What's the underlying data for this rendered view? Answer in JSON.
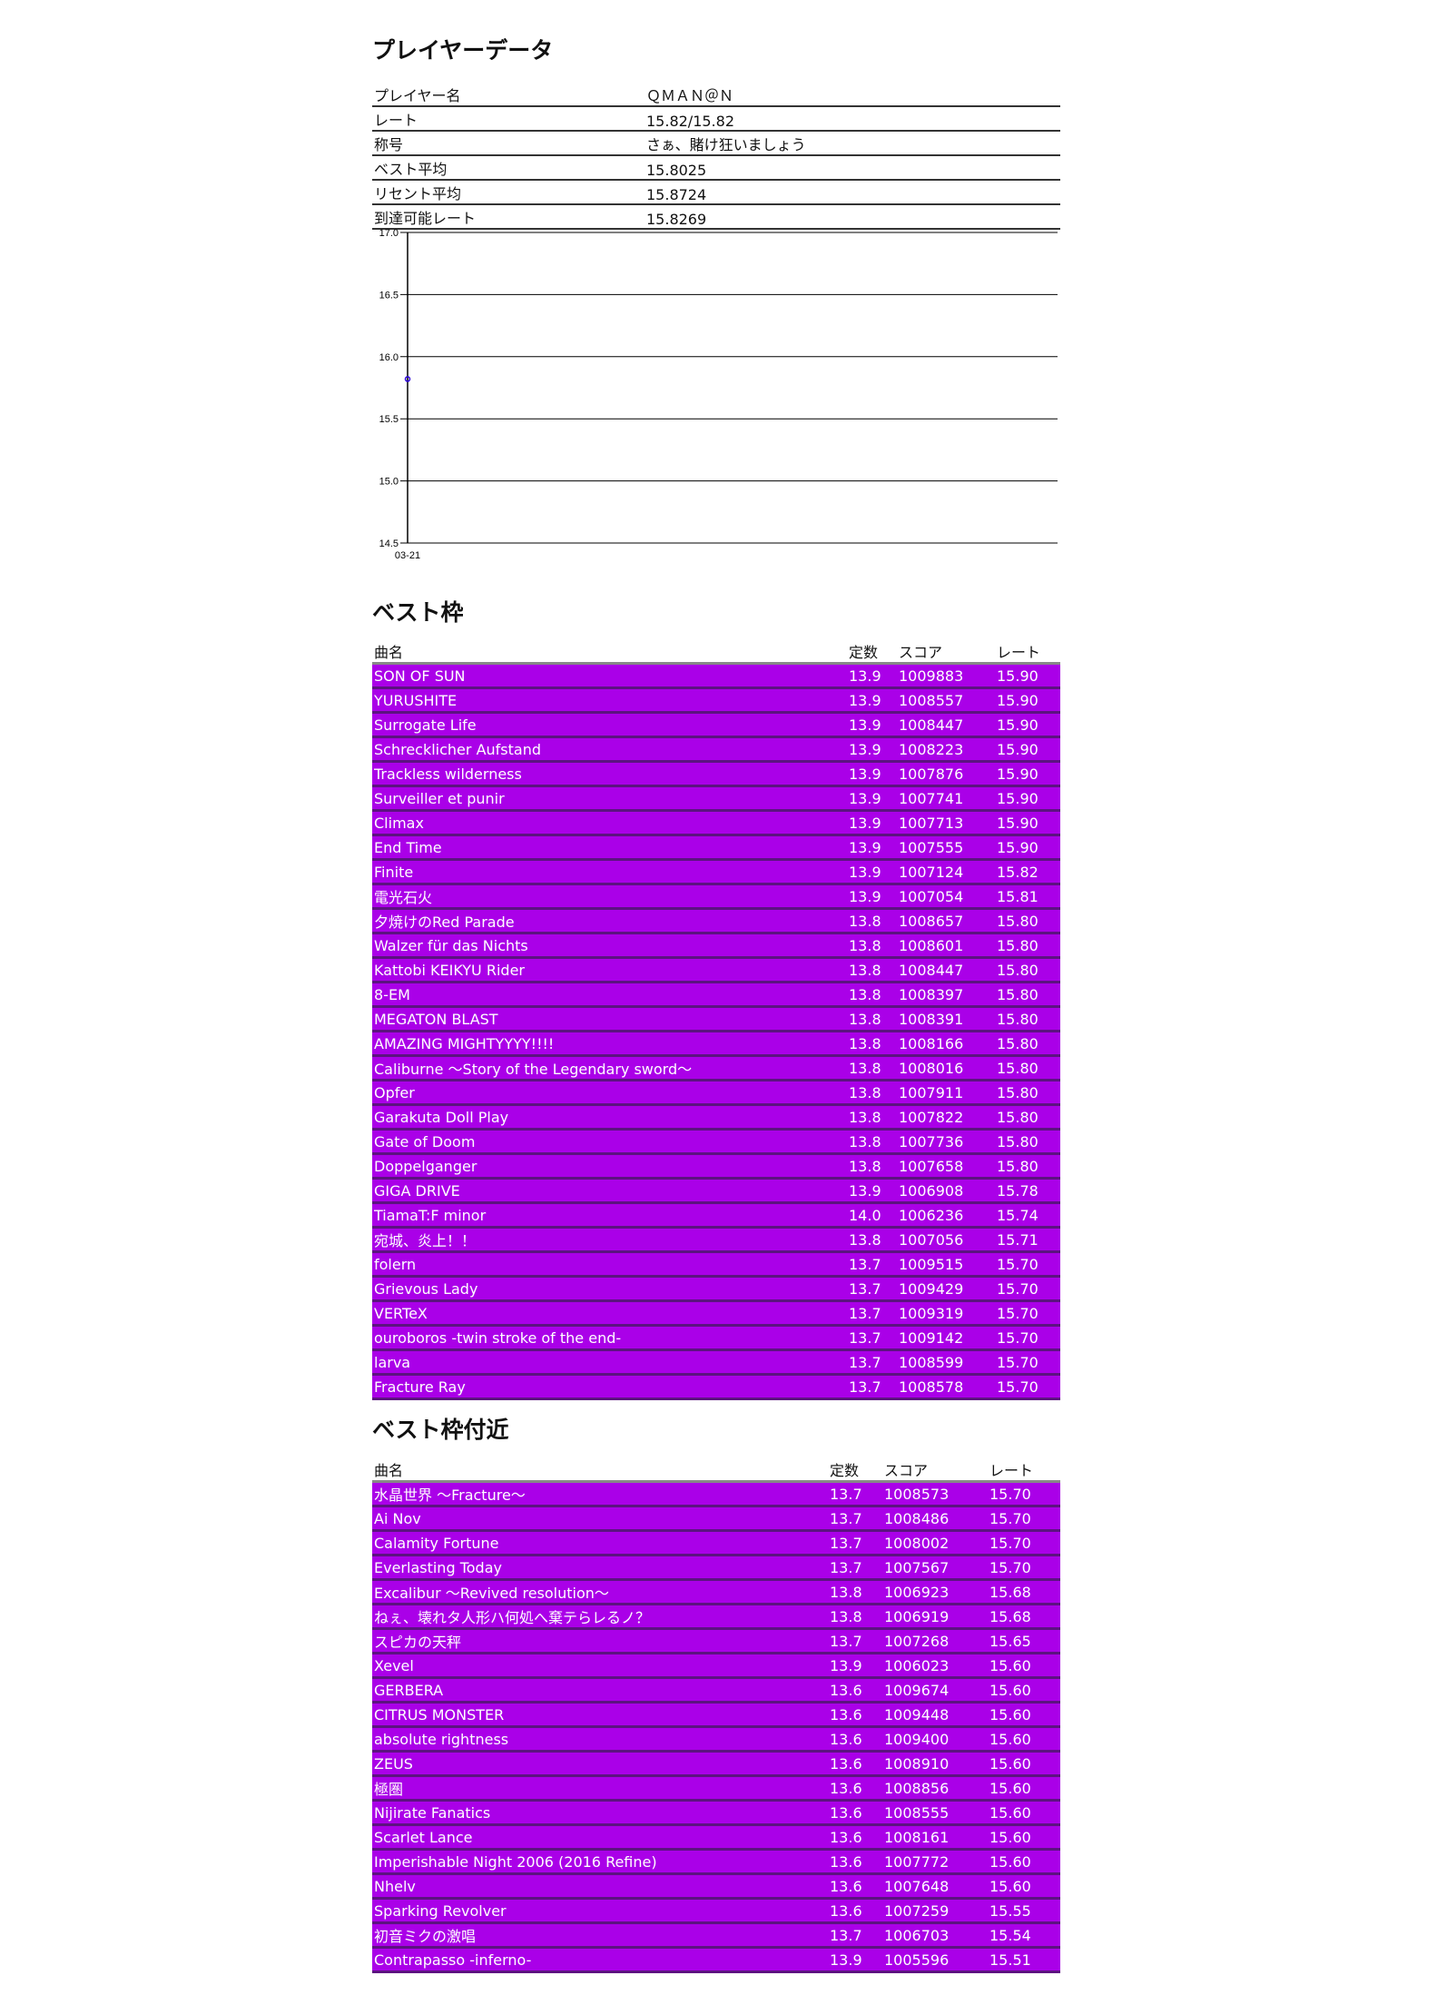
{
  "player_section": {
    "title": "プレイヤーデータ",
    "rows": [
      {
        "label": "プレイヤー名",
        "value": "ＱＭＡＮ＠Ｎ"
      },
      {
        "label": "レート",
        "value": "15.82/15.82"
      },
      {
        "label": "称号",
        "value": "さぁ、賭け狂いましょう"
      },
      {
        "label": "ベスト平均",
        "value": "15.8025"
      },
      {
        "label": "リセント平均",
        "value": "15.8724"
      },
      {
        "label": "到達可能レート",
        "value": "15.8269"
      }
    ]
  },
  "chart_data": {
    "type": "line",
    "x": [
      "03-21"
    ],
    "values": [
      15.82
    ],
    "ylim": [
      14.5,
      17.0
    ],
    "yticks": [
      "17.0",
      "16.5",
      "16.0",
      "15.5",
      "15.0",
      "14.5"
    ],
    "grid": true,
    "point_color": "#2a00e0"
  },
  "colors": {
    "row_bg": "#aa00e8",
    "row_separator": "#5c1380"
  },
  "best": {
    "title": "ベスト枠",
    "headers": {
      "name": "曲名",
      "const": "定数",
      "score": "スコア",
      "rate": "レート"
    },
    "rows": [
      [
        "SON OF SUN",
        "13.9",
        "1009883",
        "15.90"
      ],
      [
        "YURUSHITE",
        "13.9",
        "1008557",
        "15.90"
      ],
      [
        "Surrogate Life",
        "13.9",
        "1008447",
        "15.90"
      ],
      [
        "Schrecklicher Aufstand",
        "13.9",
        "1008223",
        "15.90"
      ],
      [
        "Trackless wilderness",
        "13.9",
        "1007876",
        "15.90"
      ],
      [
        "Surveiller et punir",
        "13.9",
        "1007741",
        "15.90"
      ],
      [
        "Climax",
        "13.9",
        "1007713",
        "15.90"
      ],
      [
        "End Time",
        "13.9",
        "1007555",
        "15.90"
      ],
      [
        "Finite",
        "13.9",
        "1007124",
        "15.82"
      ],
      [
        "電光石火",
        "13.9",
        "1007054",
        "15.81"
      ],
      [
        "夕焼けのRed Parade",
        "13.8",
        "1008657",
        "15.80"
      ],
      [
        "Walzer für das Nichts",
        "13.8",
        "1008601",
        "15.80"
      ],
      [
        "Kattobi KEIKYU Rider",
        "13.8",
        "1008447",
        "15.80"
      ],
      [
        "8-EM",
        "13.8",
        "1008397",
        "15.80"
      ],
      [
        "MEGATON BLAST",
        "13.8",
        "1008391",
        "15.80"
      ],
      [
        "AMAZING MIGHTYYYY!!!!",
        "13.8",
        "1008166",
        "15.80"
      ],
      [
        "Caliburne ～Story of the Legendary sword～",
        "13.8",
        "1008016",
        "15.80"
      ],
      [
        "Opfer",
        "13.8",
        "1007911",
        "15.80"
      ],
      [
        "Garakuta Doll Play",
        "13.8",
        "1007822",
        "15.80"
      ],
      [
        "Gate of Doom",
        "13.8",
        "1007736",
        "15.80"
      ],
      [
        "Doppelganger",
        "13.8",
        "1007658",
        "15.80"
      ],
      [
        "GIGA DRIVE",
        "13.9",
        "1006908",
        "15.78"
      ],
      [
        "TiamaT:F minor",
        "14.0",
        "1006236",
        "15.74"
      ],
      [
        "宛城、炎上！！",
        "13.8",
        "1007056",
        "15.71"
      ],
      [
        "folern",
        "13.7",
        "1009515",
        "15.70"
      ],
      [
        "Grievous Lady",
        "13.7",
        "1009429",
        "15.70"
      ],
      [
        "VERTeX",
        "13.7",
        "1009319",
        "15.70"
      ],
      [
        "ouroboros -twin stroke of the end-",
        "13.7",
        "1009142",
        "15.70"
      ],
      [
        "larva",
        "13.7",
        "1008599",
        "15.70"
      ],
      [
        "Fracture Ray",
        "13.7",
        "1008578",
        "15.70"
      ]
    ]
  },
  "near": {
    "title": "ベスト枠付近",
    "headers": {
      "name": "曲名",
      "const": "定数",
      "score": "スコア",
      "rate": "レート"
    },
    "rows": [
      [
        "水晶世界 ～Fracture～",
        "13.7",
        "1008573",
        "15.70"
      ],
      [
        "Ai Nov",
        "13.7",
        "1008486",
        "15.70"
      ],
      [
        "Calamity Fortune",
        "13.7",
        "1008002",
        "15.70"
      ],
      [
        "Everlasting Today",
        "13.7",
        "1007567",
        "15.70"
      ],
      [
        "Excalibur ～Revived resolution～",
        "13.8",
        "1006923",
        "15.68"
      ],
      [
        "ねぇ、壊れタ人形ハ何処へ棄テらレるノ？",
        "13.8",
        "1006919",
        "15.68"
      ],
      [
        "スピカの天秤",
        "13.7",
        "1007268",
        "15.65"
      ],
      [
        "Xevel",
        "13.9",
        "1006023",
        "15.60"
      ],
      [
        "GERBERA",
        "13.6",
        "1009674",
        "15.60"
      ],
      [
        "CITRUS MONSTER",
        "13.6",
        "1009448",
        "15.60"
      ],
      [
        "absolute rightness",
        "13.6",
        "1009400",
        "15.60"
      ],
      [
        "ZEUS",
        "13.6",
        "1008910",
        "15.60"
      ],
      [
        "極圏",
        "13.6",
        "1008856",
        "15.60"
      ],
      [
        "Nijirate Fanatics",
        "13.6",
        "1008555",
        "15.60"
      ],
      [
        "Scarlet Lance",
        "13.6",
        "1008161",
        "15.60"
      ],
      [
        "Imperishable Night 2006 (2016 Refine)",
        "13.6",
        "1007772",
        "15.60"
      ],
      [
        "Nhelv",
        "13.6",
        "1007648",
        "15.60"
      ],
      [
        "Sparking Revolver",
        "13.6",
        "1007259",
        "15.55"
      ],
      [
        "初音ミクの激唱",
        "13.7",
        "1006703",
        "15.54"
      ],
      [
        "Contrapasso -inferno-",
        "13.9",
        "1005596",
        "15.51"
      ]
    ]
  }
}
